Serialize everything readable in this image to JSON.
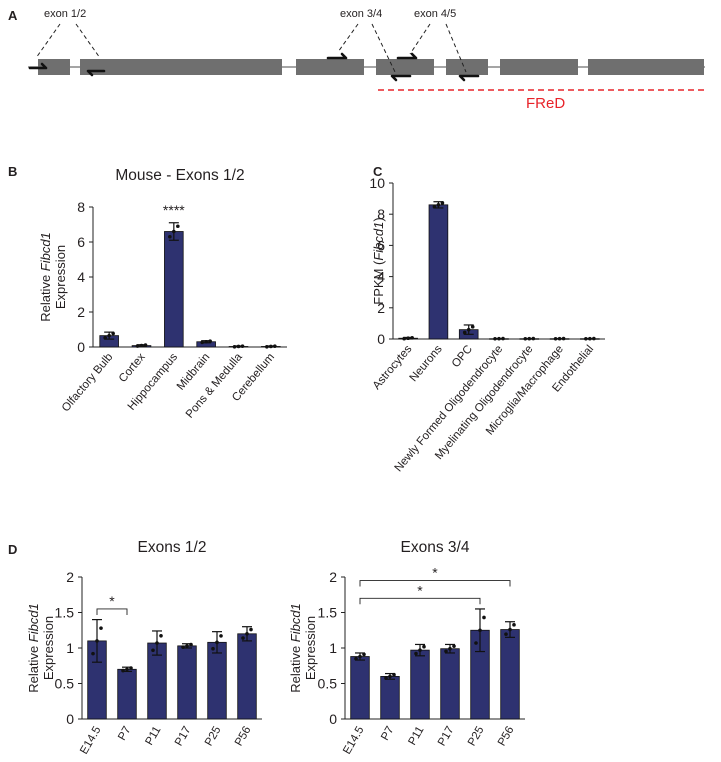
{
  "panel_letters": {
    "a": "A",
    "b": "B",
    "c": "C",
    "d": "D"
  },
  "gene_diagram": {
    "primer_labels": [
      "exon 1/2",
      "exon 3/4",
      "exon 4/5"
    ],
    "fred_label": "FReD",
    "fred_color": "#e8232a",
    "exon_color": "#6f6f6f"
  },
  "colors": {
    "bar": "#2e3270"
  },
  "chart_data": [
    {
      "id": "B",
      "type": "bar",
      "title": "Mouse - Exons 1/2",
      "ylabel_prefix": "Relative ",
      "ylabel_italic": "Fibcd1",
      "ylabel_line2": "Expression",
      "xlabel": "",
      "categories": [
        "Olfactory Bulb",
        "Cortex",
        "Hippocampus",
        "Midbrain",
        "Pons & Medulla",
        "Cerebellum"
      ],
      "values": [
        0.65,
        0.08,
        6.6,
        0.3,
        0.03,
        0.03
      ],
      "errors": [
        0.2,
        0.05,
        0.5,
        0.06,
        0.03,
        0.03
      ],
      "ylim": [
        0,
        8
      ],
      "yticks": [
        0,
        2,
        4,
        6,
        8
      ],
      "annotations": [
        {
          "category": "Hippocampus",
          "text": "****"
        }
      ]
    },
    {
      "id": "C",
      "type": "bar",
      "title": "",
      "ylabel_prefix": "FPKM (",
      "ylabel_italic": "Fibcd1",
      "ylabel_suffix": ")",
      "categories": [
        "Astrocytes",
        "Neurons",
        "OPC",
        "Newly Formed Oligodendrocyte",
        "Myelinating Oligodendrocyte",
        "Microglia/Macrophage",
        "Endothelial"
      ],
      "values": [
        0.05,
        8.6,
        0.6,
        0.02,
        0.02,
        0.02,
        0.02
      ],
      "errors": [
        0.05,
        0.2,
        0.3,
        0.01,
        0.01,
        0.01,
        0.01
      ],
      "ylim": [
        0,
        10
      ],
      "yticks": [
        0,
        2,
        4,
        6,
        8,
        10
      ]
    },
    {
      "id": "D1",
      "type": "bar",
      "title": "Exons 1/2",
      "ylabel_prefix": "Relative ",
      "ylabel_italic": "Fibcd1",
      "ylabel_line2": "Expression",
      "categories": [
        "E14.5",
        "P7",
        "P11",
        "P17",
        "P25",
        "P56"
      ],
      "values": [
        1.1,
        0.7,
        1.07,
        1.03,
        1.08,
        1.2
      ],
      "errors": [
        0.3,
        0.03,
        0.17,
        0.03,
        0.15,
        0.1
      ],
      "ylim": [
        0,
        2
      ],
      "yticks": [
        0,
        0.5,
        1,
        1.5,
        2
      ],
      "ytick_labels": [
        "0",
        "0.5",
        "1",
        "1.5",
        "2"
      ],
      "significance": [
        {
          "from": "E14.5",
          "to": "P7",
          "level": 1.55,
          "text": "*"
        }
      ]
    },
    {
      "id": "D2",
      "type": "bar",
      "title": "Exons 3/4",
      "ylabel_prefix": "Relative ",
      "ylabel_italic": "Fibcd1",
      "ylabel_line2": "Expression",
      "categories": [
        "E14.5",
        "P7",
        "P11",
        "P17",
        "P25",
        "P56"
      ],
      "values": [
        0.88,
        0.6,
        0.97,
        0.99,
        1.25,
        1.26
      ],
      "errors": [
        0.05,
        0.04,
        0.08,
        0.06,
        0.3,
        0.11
      ],
      "ylim": [
        0,
        2
      ],
      "yticks": [
        0,
        0.5,
        1,
        1.5,
        2
      ],
      "ytick_labels": [
        "0",
        "0.5",
        "1",
        "1.5",
        "2"
      ],
      "significance": [
        {
          "from": "E14.5",
          "to": "P25",
          "level": 1.7,
          "text": "*"
        },
        {
          "from": "E14.5",
          "to": "P56",
          "level": 1.95,
          "text": "*"
        }
      ]
    }
  ]
}
